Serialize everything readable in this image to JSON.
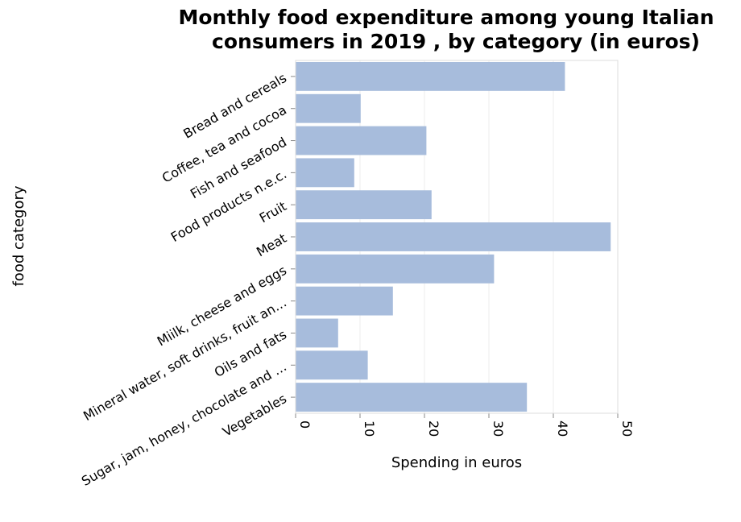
{
  "chart_data": {
    "type": "bar",
    "orientation": "horizontal",
    "title": [
      "Monthly food expenditure among young Italian",
      "consumers in 2019 , by category (in euros)"
    ],
    "xlabel": "Spending in euros",
    "ylabel": "food category",
    "xlim": [
      0,
      50
    ],
    "xticks": [
      0,
      10,
      20,
      30,
      40,
      50
    ],
    "grid": true,
    "bar_color": "#a7bcdc",
    "categories": [
      "Bread and cereals",
      "Coffee, tea and cocoa",
      "Fish and seafood",
      "Food products n.e.c.",
      "Fruit",
      "Meat",
      "Miilk, cheese and eggs",
      "Mineral water, soft drinks, fruit an…",
      "Oils and fats",
      "Sugar, jam, honey, chocolate and …",
      "Vegetables"
    ],
    "values": [
      41.8,
      10.1,
      20.3,
      9.1,
      21.1,
      48.9,
      30.8,
      15.1,
      6.6,
      11.2,
      35.9
    ]
  }
}
